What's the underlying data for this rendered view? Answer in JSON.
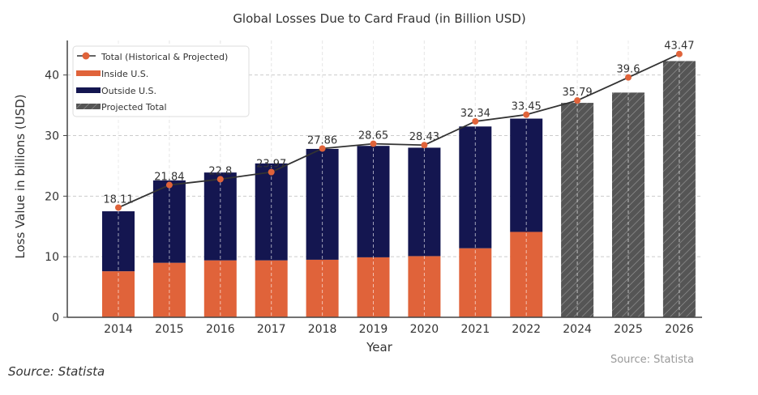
{
  "chart_data": {
    "type": "bar",
    "title": "Global Losses Due to Card Fraud (in Billion USD)",
    "xlabel": "Year",
    "ylabel": "Loss Value in billions (USD)",
    "ylim": [
      0,
      45.7
    ],
    "yticks": [
      0,
      10,
      20,
      30,
      40
    ],
    "grid": true,
    "legend_position": "top-left",
    "categories": [
      "2014",
      "2015",
      "2016",
      "2017",
      "2018",
      "2019",
      "2020",
      "2021",
      "2022",
      "2024",
      "2025",
      "2026"
    ],
    "series": [
      {
        "name": "Inside U.S.",
        "type": "stacked-bar",
        "color": "#e0633a",
        "values": [
          7.6,
          9.0,
          9.4,
          9.4,
          9.5,
          9.9,
          10.1,
          11.4,
          14.1,
          null,
          null,
          null
        ]
      },
      {
        "name": "Outside U.S.",
        "type": "stacked-bar",
        "color": "#141650",
        "values": [
          9.9,
          13.6,
          14.5,
          16.0,
          18.3,
          18.4,
          17.9,
          20.1,
          18.7,
          null,
          null,
          null
        ]
      },
      {
        "name": "Projected Total",
        "type": "hatched-bar",
        "color": "#555555",
        "values": [
          null,
          null,
          null,
          null,
          null,
          null,
          null,
          null,
          null,
          35.4,
          37.1,
          42.3
        ]
      },
      {
        "name": "Total (Historical & Projected)",
        "type": "line",
        "color": "#333333",
        "marker_color": "#e0633a",
        "values": [
          18.11,
          21.84,
          22.8,
          23.97,
          27.86,
          28.65,
          28.43,
          32.34,
          33.45,
          35.79,
          39.6,
          43.47
        ],
        "labels": [
          "18.11",
          "21.84",
          "22.8",
          "23.97",
          "27.86",
          "28.65",
          "28.43",
          "32.34",
          "33.45",
          "35.79",
          "39.6",
          "43.47"
        ]
      }
    ],
    "annotations": [
      "Source: Statista"
    ]
  },
  "footer": {
    "source": "Source: Statista"
  }
}
